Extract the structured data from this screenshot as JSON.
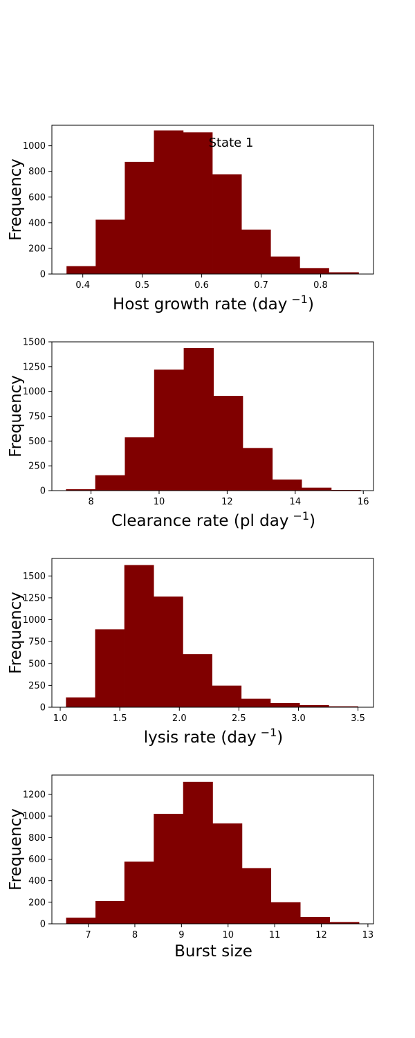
{
  "figure": {
    "annotation": "State 1"
  },
  "colors": {
    "bar": "#800000",
    "edge": "#000000"
  },
  "chart_data": [
    {
      "type": "bar",
      "title": "",
      "xlabel": "Host growth rate (day",
      "xlabel_sup": "−1",
      "xlabel_suffix": ")",
      "ylabel": "Frequency",
      "xlim": [
        0.348,
        0.889
      ],
      "ylim": [
        0,
        1160
      ],
      "xticks": [
        0.4,
        0.5,
        0.6,
        0.7,
        0.8
      ],
      "xtick_labels": [
        "0.4",
        "0.5",
        "0.6",
        "0.7",
        "0.8"
      ],
      "yticks": [
        0,
        200,
        400,
        600,
        800,
        1000
      ],
      "ytick_labels": [
        "0",
        "200",
        "400",
        "600",
        "800",
        "1000"
      ],
      "bin_edges": [
        0.373,
        0.422,
        0.471,
        0.52,
        0.569,
        0.618,
        0.667,
        0.716,
        0.765,
        0.814,
        0.864
      ],
      "values": [
        60,
        422,
        873,
        1118,
        1103,
        775,
        345,
        135,
        45,
        12
      ]
    },
    {
      "type": "bar",
      "title": "",
      "xlabel": "Clearance rate (pl day",
      "xlabel_sup": "−1",
      "xlabel_suffix": ")",
      "ylabel": "Frequency",
      "xlim": [
        6.85,
        16.3
      ],
      "ylim": [
        0,
        1500
      ],
      "xticks": [
        8,
        10,
        12,
        14,
        16
      ],
      "xtick_labels": [
        "8",
        "10",
        "12",
        "14",
        "16"
      ],
      "yticks": [
        0,
        250,
        500,
        750,
        1000,
        1250,
        1500
      ],
      "ytick_labels": [
        "0",
        "250",
        "500",
        "750",
        "1000",
        "1250",
        "1500"
      ],
      "bin_edges": [
        7.27,
        8.13,
        9.0,
        9.86,
        10.73,
        11.6,
        12.46,
        13.33,
        14.19,
        15.06,
        15.92
      ],
      "values": [
        12,
        153,
        535,
        1218,
        1435,
        953,
        428,
        110,
        28,
        5
      ]
    },
    {
      "type": "bar",
      "title": "",
      "xlabel": "lysis rate (day",
      "xlabel_sup": "−1",
      "xlabel_suffix": ")",
      "ylabel": "Frequency",
      "xlim": [
        0.93,
        3.63
      ],
      "ylim": [
        0,
        1700
      ],
      "xticks": [
        1.0,
        1.5,
        2.0,
        2.5,
        3.0,
        3.5
      ],
      "xtick_labels": [
        "1.0",
        "1.5",
        "2.0",
        "2.5",
        "3.0",
        "3.5"
      ],
      "yticks": [
        0,
        250,
        500,
        750,
        1000,
        1250,
        1500
      ],
      "ytick_labels": [
        "0",
        "250",
        "500",
        "750",
        "1000",
        "1250",
        "1500"
      ],
      "bin_edges": [
        1.05,
        1.295,
        1.54,
        1.785,
        2.03,
        2.275,
        2.52,
        2.765,
        3.01,
        3.255,
        3.5
      ],
      "values": [
        110,
        888,
        1622,
        1262,
        605,
        245,
        95,
        45,
        22,
        8
      ]
    },
    {
      "type": "bar",
      "title": "",
      "xlabel": "Burst size",
      "xlabel_sup": "",
      "xlabel_suffix": "",
      "ylabel": "Frequency",
      "xlim": [
        6.22,
        13.12
      ],
      "ylim": [
        0,
        1380
      ],
      "xticks": [
        7,
        8,
        9,
        10,
        11,
        12,
        13
      ],
      "xtick_labels": [
        "7",
        "8",
        "9",
        "10",
        "11",
        "12",
        "13"
      ],
      "yticks": [
        0,
        200,
        400,
        600,
        800,
        1000,
        1200
      ],
      "ytick_labels": [
        "0",
        "200",
        "400",
        "600",
        "800",
        "1000",
        "1200"
      ],
      "bin_edges": [
        6.53,
        7.16,
        7.78,
        8.41,
        9.04,
        9.67,
        10.3,
        10.92,
        11.55,
        12.18,
        12.81
      ],
      "values": [
        55,
        210,
        575,
        1018,
        1315,
        930,
        515,
        198,
        62,
        15
      ]
    }
  ]
}
